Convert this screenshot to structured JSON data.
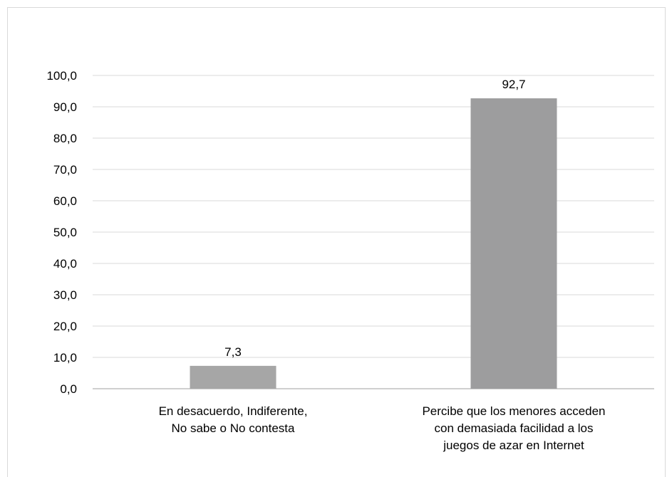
{
  "chart_data": {
    "type": "bar",
    "categories": [
      [
        "En desacuerdo, Indiferente,",
        "No sabe o No contesta"
      ],
      [
        "Percibe que los menores acceden",
        "con demasiada facilidad a los",
        "juegos de azar en Internet"
      ]
    ],
    "values": [
      7.3,
      92.7
    ],
    "value_labels": [
      "7,3",
      "92,7"
    ],
    "ylim": [
      0,
      100
    ],
    "yticks": [
      0,
      10,
      20,
      30,
      40,
      50,
      60,
      70,
      80,
      90,
      100
    ],
    "ytick_labels": [
      "0,0",
      "10,0",
      "20,0",
      "30,0",
      "40,0",
      "50,0",
      "60,0",
      "70,0",
      "80,0",
      "90,0",
      "100,0"
    ],
    "grid": true,
    "legend": "none",
    "bar_colors": [
      "#a6a6a6",
      "#9d9d9e"
    ],
    "grid_color": "#d9d9d9",
    "axis_color": "#bfbfbf"
  }
}
